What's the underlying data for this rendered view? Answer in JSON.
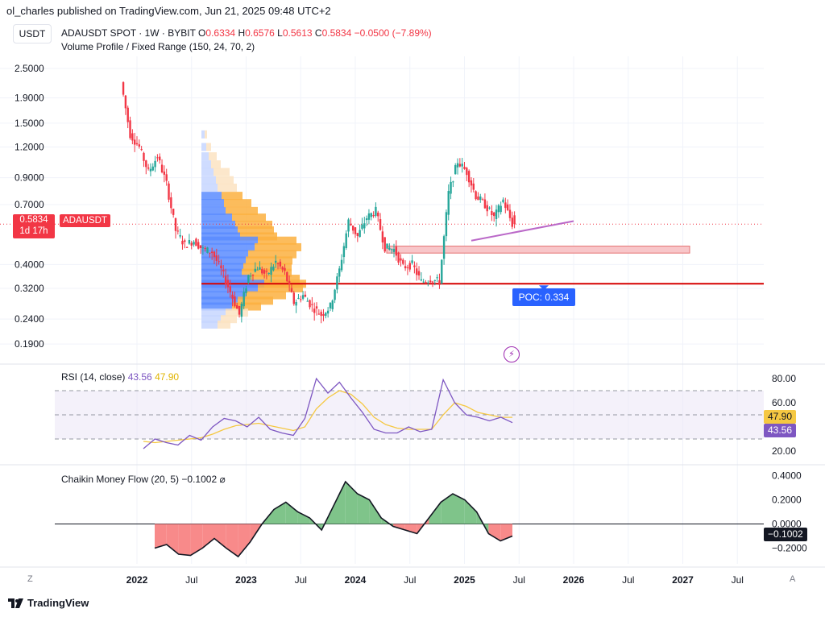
{
  "caption": "ol_charles published on TradingView.com, Jun 21, 2025 09:48 UTC+2",
  "currency": "USDT",
  "legend": {
    "symbol": "ADAUSDT SPOT · 1W · BYBIT",
    "o_label": "O",
    "o": "0.6334",
    "h_label": "H",
    "h": "0.6576",
    "l_label": "L",
    "l": "0.5613",
    "c_label": "C",
    "c": "0.5834",
    "change": "−0.0500 (−7.89%)",
    "indicator": "Volume Profile / Fixed Range (150, 24, 70, 2)"
  },
  "price_tag": {
    "price": "0.5834",
    "countdown": "1d 17h",
    "symbol": "ADAUSDT"
  },
  "poc_label": "POC: 0.334",
  "colors": {
    "up": "#26a69a",
    "down": "#f23645",
    "rsi": "#7e57c2",
    "rsi_ma": "#f5c842",
    "poc": "#d50000",
    "trend": "#ba68c8",
    "cmf_pos": "#4caf50",
    "cmf_neg": "#f23645"
  },
  "rsi": {
    "label": "RSI (14, close)",
    "value": "43.56",
    "ma": "47.90"
  },
  "cmf": {
    "label": "Chaikin Money Flow (20, 5)",
    "value": "−0.1002",
    "icon": "eye-off-icon"
  },
  "brand": "TradingView",
  "corner_left": "Z",
  "corner_right": "A",
  "chart_data": [
    {
      "type": "candlestick",
      "title": "ADAUSDT SPOT · 1W · BYBIT",
      "yscale": "log",
      "ylim": [
        0.16,
        2.8
      ],
      "yticks": [
        "2.5000",
        "1.9000",
        "1.5000",
        "1.2000",
        "0.9000",
        "0.7000",
        "0.4000",
        "0.3200",
        "0.2400",
        "0.1900"
      ],
      "x_labels": [
        "2022",
        "Jul",
        "2023",
        "Jul",
        "2024",
        "Jul",
        "2025",
        "Jul",
        "2026",
        "Jul",
        "2027",
        "Jul"
      ],
      "x_bold": [
        "2022",
        "2023",
        "2024",
        "2025",
        "2026",
        "2027"
      ],
      "price_path": [
        {
          "date": "2021-11",
          "price": 2.2
        },
        {
          "date": "2021-12",
          "price": 1.35
        },
        {
          "date": "2022-01",
          "price": 1.2
        },
        {
          "date": "2022-02",
          "price": 0.95
        },
        {
          "date": "2022-03",
          "price": 1.1
        },
        {
          "date": "2022-04",
          "price": 0.85
        },
        {
          "date": "2022-05",
          "price": 0.55
        },
        {
          "date": "2022-06",
          "price": 0.48
        },
        {
          "date": "2022-07",
          "price": 0.5
        },
        {
          "date": "2022-08",
          "price": 0.46
        },
        {
          "date": "2022-09",
          "price": 0.45
        },
        {
          "date": "2022-10",
          "price": 0.38
        },
        {
          "date": "2022-11",
          "price": 0.31
        },
        {
          "date": "2022-12",
          "price": 0.25
        },
        {
          "date": "2023-01",
          "price": 0.36
        },
        {
          "date": "2023-02",
          "price": 0.39
        },
        {
          "date": "2023-03",
          "price": 0.36
        },
        {
          "date": "2023-04",
          "price": 0.41
        },
        {
          "date": "2023-05",
          "price": 0.37
        },
        {
          "date": "2023-06",
          "price": 0.28
        },
        {
          "date": "2023-07",
          "price": 0.3
        },
        {
          "date": "2023-08",
          "price": 0.27
        },
        {
          "date": "2023-09",
          "price": 0.25
        },
        {
          "date": "2023-10",
          "price": 0.27
        },
        {
          "date": "2023-11",
          "price": 0.38
        },
        {
          "date": "2023-12",
          "price": 0.6
        },
        {
          "date": "2024-01",
          "price": 0.52
        },
        {
          "date": "2024-02",
          "price": 0.62
        },
        {
          "date": "2024-03",
          "price": 0.66
        },
        {
          "date": "2024-04",
          "price": 0.47
        },
        {
          "date": "2024-05",
          "price": 0.46
        },
        {
          "date": "2024-06",
          "price": 0.39
        },
        {
          "date": "2024-07",
          "price": 0.4
        },
        {
          "date": "2024-08",
          "price": 0.34
        },
        {
          "date": "2024-09",
          "price": 0.35
        },
        {
          "date": "2024-10",
          "price": 0.34
        },
        {
          "date": "2024-11",
          "price": 0.78
        },
        {
          "date": "2024-12",
          "price": 1.05
        },
        {
          "date": "2025-01",
          "price": 0.95
        },
        {
          "date": "2025-02",
          "price": 0.76
        },
        {
          "date": "2025-03",
          "price": 0.7
        },
        {
          "date": "2025-04",
          "price": 0.62
        },
        {
          "date": "2025-05",
          "price": 0.73
        },
        {
          "date": "2025-06",
          "price": 0.5834
        }
      ],
      "annotations": [
        {
          "type": "hline",
          "label": "POC: 0.334",
          "price": 0.334
        },
        {
          "type": "zone",
          "from": 0.445,
          "to": 0.475
        },
        {
          "type": "trendline",
          "from_price": 0.5,
          "to_price": 0.6
        }
      ]
    },
    {
      "type": "line",
      "title": "RSI (14, close)",
      "ylim": [
        10,
        90
      ],
      "yticks": [
        "80.00",
        "60.00",
        "20.00"
      ],
      "band": [
        30,
        70
      ],
      "series": [
        {
          "name": "RSI",
          "values": [
            22,
            30,
            27,
            25,
            33,
            29,
            40,
            47,
            45,
            40,
            48,
            38,
            35,
            33,
            47,
            80,
            68,
            77,
            64,
            52,
            38,
            35,
            35,
            40,
            36,
            38,
            79,
            60,
            50,
            48,
            45,
            48,
            43.56
          ]
        },
        {
          "name": "RSI MA",
          "values": [
            28,
            27,
            28,
            29,
            30,
            31,
            34,
            38,
            41,
            42,
            43,
            41,
            39,
            37,
            40,
            55,
            64,
            70,
            67,
            59,
            48,
            42,
            39,
            38,
            38,
            38,
            50,
            60,
            57,
            52,
            50,
            48,
            47.9
          ]
        }
      ]
    },
    {
      "type": "area",
      "title": "Chaikin Money Flow (20, 5)",
      "ylim": [
        -0.33,
        0.47
      ],
      "yticks": [
        "0.4000",
        "0.2000",
        "0.0000",
        "−0.2000"
      ],
      "series": [
        {
          "name": "CMF",
          "values": [
            -0.2,
            -0.17,
            -0.25,
            -0.26,
            -0.2,
            -0.12,
            -0.2,
            -0.27,
            -0.15,
            0.0,
            0.12,
            0.18,
            0.1,
            0.05,
            -0.05,
            0.15,
            0.35,
            0.25,
            0.2,
            0.05,
            -0.02,
            -0.05,
            -0.08,
            0.05,
            0.18,
            0.25,
            0.2,
            0.1,
            -0.08,
            -0.14,
            -0.1002
          ]
        }
      ]
    }
  ]
}
